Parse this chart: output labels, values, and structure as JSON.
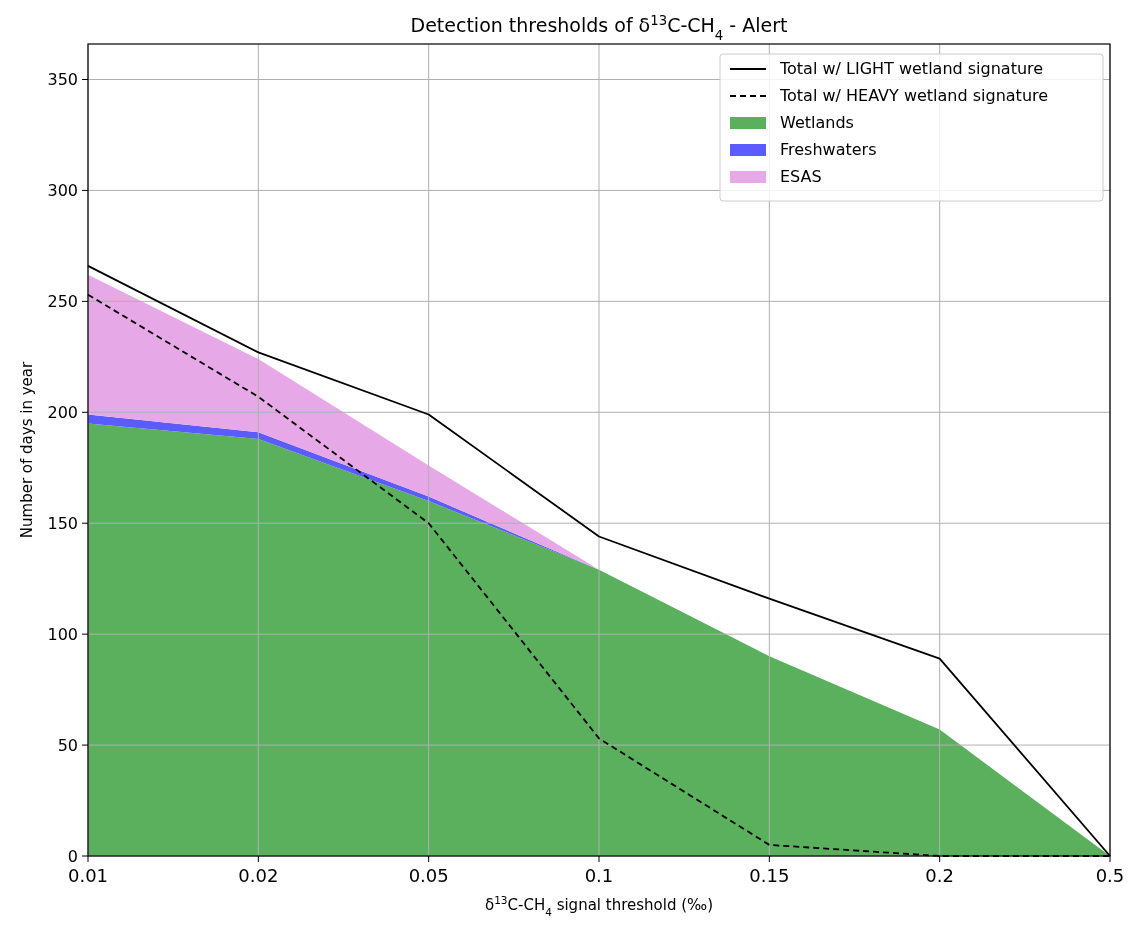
{
  "chart_data": {
    "type": "area",
    "title": "Detection thresholds of δ$^{13}$C-CH$_{4}$ - Alert",
    "xlabel": "δ$^{13}$C-CH$_{4}$ signal threshold (‰)",
    "ylabel": "Number of days in year",
    "categories": [
      "0.01",
      "0.02",
      "0.05",
      "0.1",
      "0.15",
      "0.2",
      "0.5"
    ],
    "stacked": true,
    "ylim": [
      0,
      366
    ],
    "yticks": [
      0,
      50,
      100,
      150,
      200,
      250,
      300,
      350
    ],
    "grid": true,
    "legend": "top right",
    "series": [
      {
        "name": "Total w/ LIGHT wetland signature",
        "type": "line",
        "color": "#000000",
        "line_style": "solid",
        "values": [
          266,
          227,
          199,
          144,
          116,
          89,
          0
        ]
      },
      {
        "name": "Total w/ HEAVY wetland signature",
        "type": "line",
        "color": "#000000",
        "line_style": "dashed",
        "values": [
          253,
          207,
          150,
          53,
          5,
          0,
          0
        ]
      },
      {
        "name": "Wetlands",
        "color": "#5ab05d",
        "values": [
          195,
          188,
          160,
          129,
          90,
          57,
          0
        ]
      },
      {
        "name": "Freshwaters",
        "color": "#5a5cff",
        "values": [
          4,
          3,
          2,
          0,
          0,
          0,
          0
        ]
      },
      {
        "name": "ESAS",
        "color": "#e6a8e6",
        "values": [
          63,
          33,
          14,
          0,
          0,
          0,
          0
        ]
      }
    ]
  }
}
